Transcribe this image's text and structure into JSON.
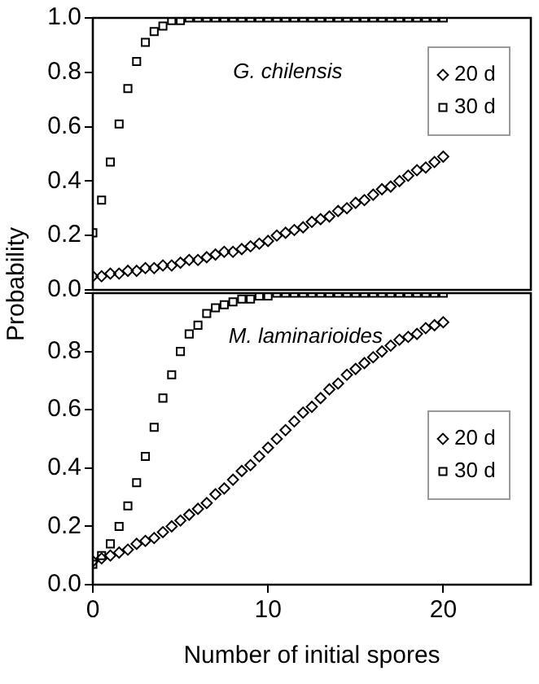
{
  "chart_data": [
    {
      "type": "scatter",
      "ylabel": "Probability",
      "annotations": [
        "G. chilensis"
      ],
      "legend": "top right",
      "tick_labels": "y",
      "grid": false,
      "xlim": [
        0,
        25
      ],
      "xticks": [
        0,
        10,
        20
      ],
      "ylim": [
        0,
        1
      ],
      "yticks": [
        {
          "value": 0,
          "label": "0.0"
        },
        {
          "value": 0.2,
          "label": "0.2"
        },
        {
          "value": 0.4,
          "label": "0.4"
        },
        {
          "value": 0.6,
          "label": "0.6"
        },
        {
          "value": 0.8,
          "label": "0.8"
        },
        {
          "value": 1,
          "label": "1.0"
        }
      ],
      "x": [
        0,
        0.5,
        1,
        1.5,
        2,
        2.5,
        3,
        3.5,
        4,
        4.5,
        5,
        5.5,
        6,
        6.5,
        7,
        7.5,
        8,
        8.5,
        9,
        9.5,
        10,
        10.5,
        11,
        11.5,
        12,
        12.5,
        13,
        13.5,
        14,
        14.5,
        15,
        15.5,
        16,
        16.5,
        17,
        17.5,
        18,
        18.5,
        19,
        19.5,
        20
      ],
      "series": [
        {
          "name": "20 d",
          "color": "#000000",
          "marker": "diamond",
          "values": [
            0.05,
            0.05,
            0.06,
            0.06,
            0.07,
            0.07,
            0.08,
            0.08,
            0.09,
            0.09,
            0.1,
            0.11,
            0.11,
            0.12,
            0.13,
            0.14,
            0.14,
            0.15,
            0.16,
            0.17,
            0.18,
            0.2,
            0.21,
            0.22,
            0.23,
            0.25,
            0.26,
            0.27,
            0.29,
            0.3,
            0.32,
            0.33,
            0.35,
            0.37,
            0.38,
            0.4,
            0.42,
            0.44,
            0.45,
            0.47,
            0.49
          ]
        },
        {
          "name": "30 d",
          "color": "#000000",
          "marker": "square",
          "values": [
            0.21,
            0.33,
            0.47,
            0.61,
            0.74,
            0.84,
            0.91,
            0.95,
            0.97,
            0.99,
            0.99,
            1,
            1,
            1,
            1,
            1,
            1,
            1,
            1,
            1,
            1,
            1,
            1,
            1,
            1,
            1,
            1,
            1,
            1,
            1,
            1,
            1,
            1,
            1,
            1,
            1,
            1,
            1,
            1,
            1,
            1
          ]
        }
      ]
    },
    {
      "type": "scatter",
      "xlabel": "Number of initial spores",
      "annotations": [
        "M. laminarioides"
      ],
      "legend": "right",
      "grid": false,
      "xlim": [
        0,
        25
      ],
      "xticks": [
        0,
        10,
        20
      ],
      "ylim": [
        0,
        1
      ],
      "yticks": [
        {
          "value": 0,
          "label": "0.0"
        },
        {
          "value": 0.2,
          "label": "0.2"
        },
        {
          "value": 0.4,
          "label": "0.4"
        },
        {
          "value": 0.6,
          "label": "0.6"
        },
        {
          "value": 0.8,
          "label": "0.8"
        },
        {
          "value": 1,
          "label": null
        }
      ],
      "x": [
        0,
        0.5,
        1,
        1.5,
        2,
        2.5,
        3,
        3.5,
        4,
        4.5,
        5,
        5.5,
        6,
        6.5,
        7,
        7.5,
        8,
        8.5,
        9,
        9.5,
        10,
        10.5,
        11,
        11.5,
        12,
        12.5,
        13,
        13.5,
        14,
        14.5,
        15,
        15.5,
        16,
        16.5,
        17,
        17.5,
        18,
        18.5,
        19,
        19.5,
        20
      ],
      "series": [
        {
          "name": "20 d",
          "color": "#000000",
          "marker": "diamond",
          "values": [
            0.08,
            0.09,
            0.1,
            0.11,
            0.12,
            0.14,
            0.15,
            0.16,
            0.18,
            0.2,
            0.22,
            0.24,
            0.26,
            0.28,
            0.31,
            0.33,
            0.36,
            0.39,
            0.41,
            0.44,
            0.47,
            0.5,
            0.53,
            0.56,
            0.59,
            0.61,
            0.64,
            0.67,
            0.69,
            0.72,
            0.74,
            0.76,
            0.78,
            0.8,
            0.82,
            0.84,
            0.85,
            0.86,
            0.88,
            0.89,
            0.9
          ]
        },
        {
          "name": "30 d",
          "color": "#000000",
          "marker": "square",
          "values": [
            0.07,
            0.1,
            0.14,
            0.2,
            0.27,
            0.35,
            0.44,
            0.54,
            0.64,
            0.72,
            0.8,
            0.86,
            0.89,
            0.93,
            0.95,
            0.96,
            0.97,
            0.98,
            0.98,
            0.99,
            0.99,
            1,
            1,
            1,
            1,
            1,
            1,
            1,
            1,
            1,
            1,
            1,
            1,
            1,
            1,
            1,
            1,
            1,
            1,
            1,
            1
          ]
        }
      ]
    }
  ]
}
